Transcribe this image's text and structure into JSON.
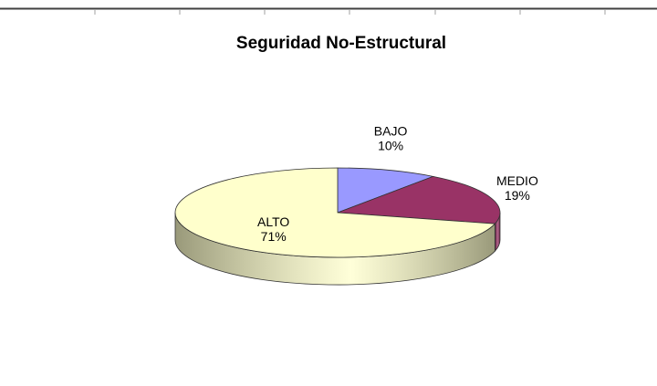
{
  "chart_data": {
    "type": "pie",
    "title": "Seguridad No-Estructural",
    "slices": [
      {
        "label": "BAJO",
        "value": 10,
        "value_label": "10%",
        "color": "#9999ff",
        "side_color": "#5c5c99"
      },
      {
        "label": "MEDIO",
        "value": 19,
        "value_label": "19%",
        "color": "#993366",
        "side_color": "#5c1f3d"
      },
      {
        "label": "ALTO",
        "value": 71,
        "value_label": "71%",
        "color": "#ffffcc",
        "side_color": "#99997a"
      }
    ],
    "legend": "none",
    "style": "3d"
  }
}
